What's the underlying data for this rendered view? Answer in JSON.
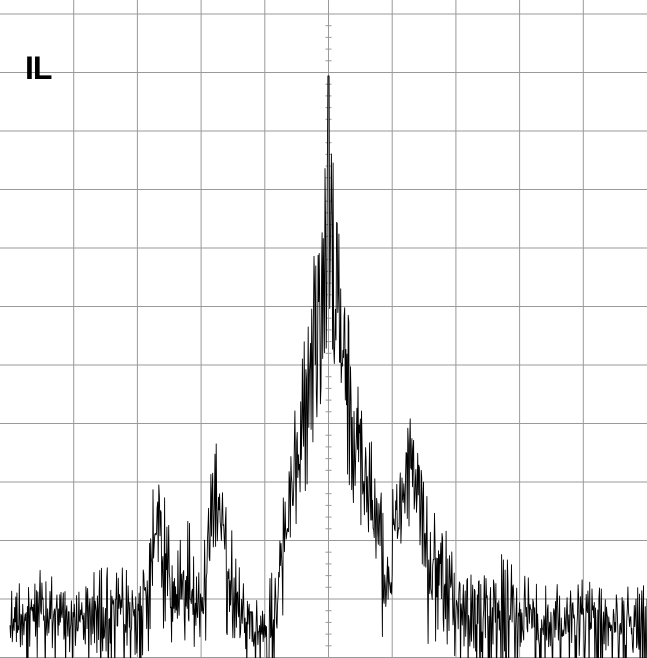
{
  "trace_label": "IL",
  "colors": {
    "background": "#ffffff",
    "grid": "#9a9a9a",
    "trace": "#000000"
  },
  "chart_data": {
    "type": "line",
    "title": "",
    "xlabel": "",
    "ylabel": "",
    "grid": true,
    "grid_divisions": {
      "x": 10,
      "y": 11
    },
    "xlim": [
      0,
      10
    ],
    "ylim": [
      0,
      11
    ],
    "series": [
      {
        "values_envelope": {
          "x": [
            0.0,
            0.5,
            1.0,
            1.5,
            2.0,
            2.3,
            2.6,
            2.8,
            3.0,
            3.2,
            3.4,
            3.6,
            3.8,
            4.0,
            4.3,
            4.5,
            4.7,
            4.85,
            5.0,
            5.15,
            5.3,
            5.5,
            5.7,
            5.9,
            6.1,
            6.3,
            6.5,
            6.8,
            7.0,
            7.3,
            7.6,
            8.0,
            8.5,
            9.0,
            9.5,
            10.0
          ],
          "y": [
            1.4,
            1.6,
            1.3,
            1.7,
            1.5,
            3.3,
            2.0,
            2.6,
            1.7,
            4.1,
            3.0,
            1.6,
            1.1,
            0.9,
            2.8,
            4.5,
            6.5,
            8.2,
            9.95,
            7.7,
            6.2,
            4.9,
            3.6,
            2.6,
            3.4,
            4.9,
            3.1,
            2.4,
            2.0,
            1.4,
            1.9,
            1.6,
            1.3,
            1.5,
            1.2,
            1.4
          ]
        }
      }
    ]
  }
}
